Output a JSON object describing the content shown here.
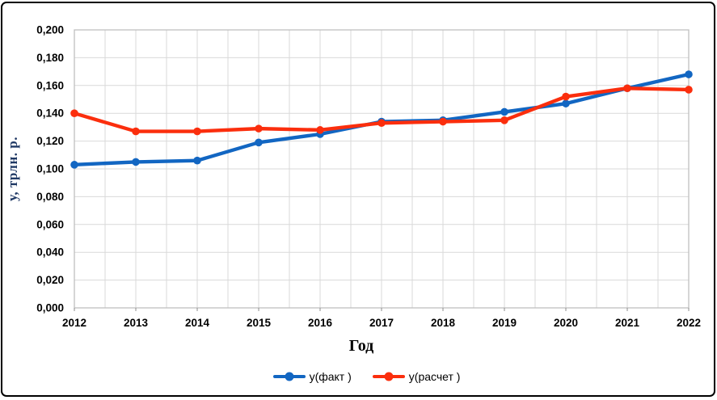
{
  "chart_data": {
    "type": "line",
    "title": "",
    "xlabel": "Год",
    "ylabel": "у, трлн. р.",
    "categories": [
      "2012",
      "2013",
      "2014",
      "2015",
      "2016",
      "2017",
      "2018",
      "2019",
      "2020",
      "2021",
      "2022"
    ],
    "series": [
      {
        "name": "у(факт )",
        "color": "#1266C2",
        "values": [
          0.103,
          0.105,
          0.106,
          0.119,
          0.125,
          0.134,
          0.135,
          0.141,
          0.147,
          0.158,
          0.168
        ]
      },
      {
        "name": "у(расчет )",
        "color": "#FB2E0D",
        "values": [
          0.14,
          0.127,
          0.127,
          0.129,
          0.128,
          0.133,
          0.134,
          0.135,
          0.152,
          0.158,
          0.157
        ]
      }
    ],
    "ylim": [
      0,
      0.2
    ],
    "ytick_step": 0.02,
    "ytick_labels": [
      "0,000",
      "0,020",
      "0,040",
      "0,060",
      "0,080",
      "0,100",
      "0,120",
      "0,140",
      "0,160",
      "0,180",
      "0,200"
    ],
    "xtick_minor_per_interval": 2,
    "grid": {
      "horizontal": "major",
      "vertical": "minor-half-year"
    },
    "legend_position": "bottom",
    "colors": {
      "grid": "#D9D9D9",
      "plot_border": "#BFBFBF",
      "tick": "#8C8C8C",
      "text": "#000000",
      "y_axis_title": "#1F3864"
    }
  }
}
